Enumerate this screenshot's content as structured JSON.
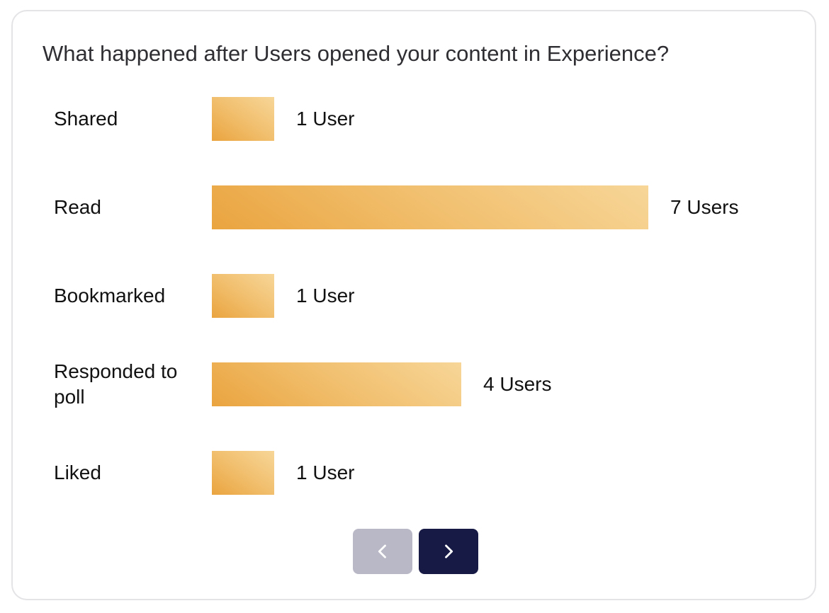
{
  "chart_data": {
    "type": "bar",
    "orientation": "horizontal",
    "title": "What happened after Users opened your content in Experience?",
    "categories": [
      "Shared",
      "Read",
      "Bookmarked",
      "Responded to poll",
      "Liked"
    ],
    "values": [
      1,
      7,
      1,
      4,
      1
    ],
    "value_labels": [
      "1 User",
      "7 Users",
      "1 User",
      "4 Users",
      "1 User"
    ],
    "xlim": [
      0,
      7
    ],
    "grid": false,
    "legend": "none",
    "colors": {
      "bar_start": "#eaa43f",
      "bar_end": "#f7d698"
    }
  },
  "pagination": {
    "prev_icon": "chevron-left-icon",
    "next_icon": "chevron-right-icon",
    "prev_enabled": false,
    "next_enabled": true,
    "prev_color": "#b9b8c6",
    "next_color": "#181a46"
  }
}
